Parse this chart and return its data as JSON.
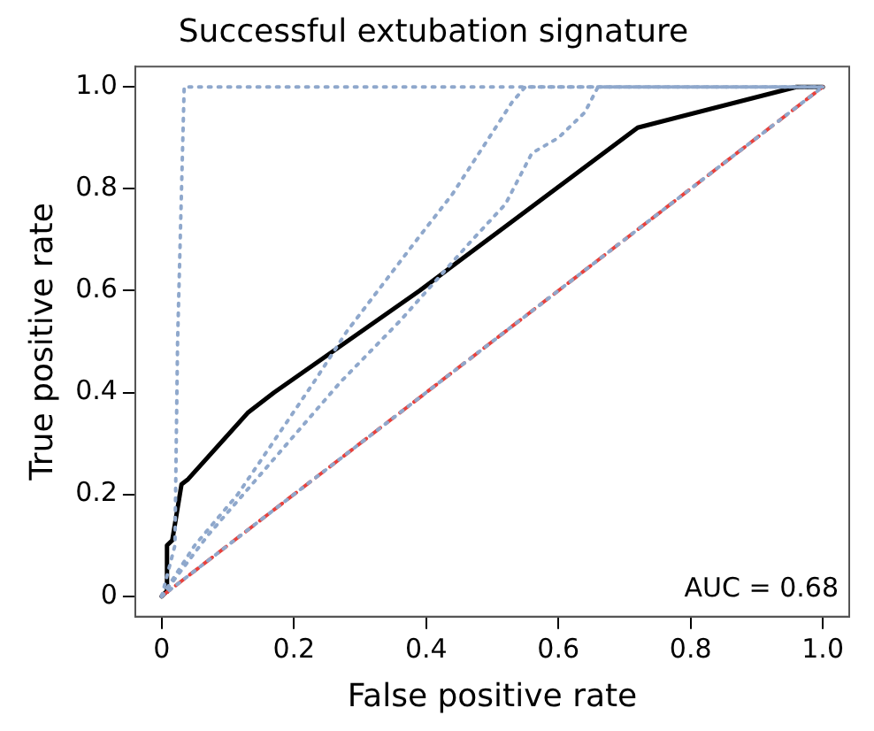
{
  "chart_data": {
    "type": "line",
    "title": "Successful extubation signature",
    "xlabel": "False positive rate",
    "ylabel": "True positive rate",
    "xlim": [
      -0.04,
      1.04
    ],
    "ylim": [
      -0.04,
      1.04
    ],
    "xticks": [
      0,
      0.2,
      0.4,
      0.6,
      0.8,
      {
        "value": 1,
        "label": "1.0"
      }
    ],
    "yticks": [
      0,
      0.2,
      0.4,
      0.6,
      0.8,
      {
        "value": 1,
        "label": "1.0"
      }
    ],
    "grid": false,
    "legend": false,
    "marker": "none",
    "annotations": [
      "AUC = 0.68"
    ],
    "series": [
      {
        "color": "#8fa8cc",
        "line_style": "dotted",
        "x": [
          0,
          0.02,
          0.024,
          0.034,
          1
        ],
        "values": [
          0,
          0.1,
          0.5,
          1,
          1
        ]
      },
      {
        "color": "#8fa8cc",
        "line_style": "dotted",
        "x": [
          0,
          0.05,
          0.115,
          0.23,
          0.28,
          0.38,
          0.44,
          0.51,
          0.53,
          0.55,
          1
        ],
        "values": [
          0,
          0.1,
          0.2,
          0.42,
          0.52,
          0.69,
          0.79,
          0.93,
          0.97,
          1,
          1
        ]
      },
      {
        "color": "#8fa8cc",
        "line_style": "dotted",
        "x": [
          0,
          0.07,
          0.27,
          0.36,
          0.47,
          0.52,
          0.56,
          0.6,
          0.64,
          0.66,
          1
        ],
        "values": [
          0,
          0.12,
          0.42,
          0.54,
          0.7,
          0.77,
          0.87,
          0.9,
          0.95,
          1,
          1
        ]
      },
      {
        "color": "#8fa8cc",
        "line_style": "dotted",
        "x": [
          0,
          1
        ],
        "values": [
          0,
          1
        ]
      },
      {
        "color": "#e8413c",
        "line_style": "dashed",
        "x": [
          0,
          1
        ],
        "values": [
          0,
          1
        ]
      },
      {
        "color": "#000000",
        "line_style": "solid",
        "x": [
          0,
          0.007,
          0.008,
          0.016,
          0.03,
          0.04,
          0.13,
          0.17,
          0.39,
          0.72,
          0.96,
          1
        ],
        "values": [
          0,
          0.009,
          0.1,
          0.11,
          0.22,
          0.23,
          0.36,
          0.4,
          0.6,
          0.92,
          1,
          1
        ]
      }
    ]
  }
}
